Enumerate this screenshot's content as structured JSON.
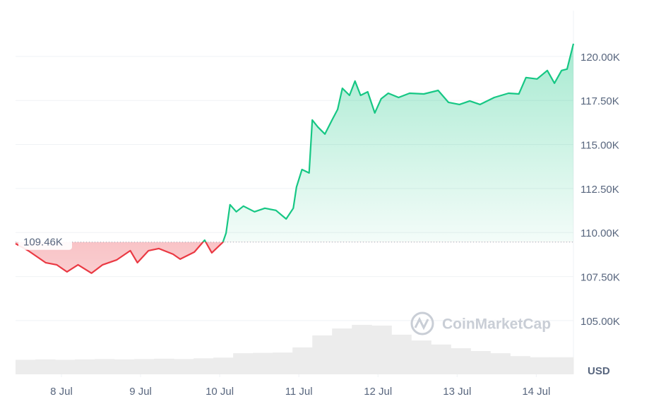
{
  "chart_data": {
    "type": "line",
    "x": [
      7.42,
      7.58,
      7.8,
      7.94,
      8.07,
      8.21,
      8.38,
      8.52,
      8.7,
      8.87,
      8.96,
      9.1,
      9.23,
      9.41,
      9.5,
      9.68,
      9.81,
      9.9,
      10.04,
      10.08,
      10.13,
      10.21,
      10.3,
      10.44,
      10.57,
      10.71,
      10.84,
      10.93,
      10.97,
      11.04,
      11.13,
      11.17,
      11.24,
      11.33,
      11.42,
      11.49,
      11.55,
      11.64,
      11.71,
      11.78,
      11.87,
      11.96,
      12.04,
      12.13,
      12.26,
      12.4,
      12.58,
      12.76,
      12.89,
      13.03,
      13.16,
      13.29,
      13.47,
      13.65,
      13.78,
      13.87,
      14.01,
      14.14,
      14.23,
      14.32,
      14.39,
      14.47
    ],
    "values": [
      109370,
      108970,
      108290,
      108170,
      107770,
      108170,
      107690,
      108170,
      108450,
      108970,
      108290,
      108970,
      109090,
      108770,
      108490,
      108890,
      109570,
      108850,
      109450,
      109970,
      111580,
      111180,
      111500,
      111180,
      111380,
      111260,
      110770,
      111380,
      112580,
      113580,
      113380,
      116390,
      115990,
      115590,
      116390,
      116990,
      118190,
      117790,
      118600,
      117790,
      117990,
      116790,
      117590,
      117910,
      117670,
      117910,
      117870,
      118070,
      117390,
      117270,
      117470,
      117270,
      117670,
      117910,
      117870,
      118800,
      118720,
      119200,
      118480,
      119200,
      119280,
      120720
    ],
    "up_color": "#16c784",
    "down_color": "#ea3943",
    "baseline": {
      "value": 109460,
      "label": "109.46K"
    },
    "xlim": [
      7.42,
      14.47
    ],
    "xticks": [
      {
        "value": 8,
        "label": "8 Jul"
      },
      {
        "value": 9,
        "label": "9 Jul"
      },
      {
        "value": 10,
        "label": "10 Jul"
      },
      {
        "value": 11,
        "label": "11 Jul"
      },
      {
        "value": 12,
        "label": "12 Jul"
      },
      {
        "value": 13,
        "label": "13 Jul"
      },
      {
        "value": 14,
        "label": "14 Jul"
      }
    ],
    "ylim": [
      101950,
      122600
    ],
    "yticks": [
      {
        "value": 105000,
        "label": "105.00K"
      },
      {
        "value": 107500,
        "label": "107.50K"
      },
      {
        "value": 110000,
        "label": "110.00K"
      },
      {
        "value": 112500,
        "label": "112.50K"
      },
      {
        "value": 115000,
        "label": "115.00K"
      },
      {
        "value": 117500,
        "label": "117.50K"
      },
      {
        "value": 120000,
        "label": "120.00K"
      }
    ],
    "y_unit": "USD",
    "grid": true,
    "watermark": "CoinMarketCap",
    "volume": {
      "color": "#ececec",
      "y2lim": [
        0,
        100
      ],
      "x": [
        7.42,
        7.67,
        7.92,
        8.17,
        8.42,
        8.67,
        8.92,
        9.17,
        9.42,
        9.67,
        9.92,
        10.17,
        10.42,
        10.67,
        10.92,
        11.17,
        11.42,
        11.67,
        11.92,
        12.17,
        12.42,
        12.67,
        12.92,
        13.17,
        13.42,
        13.67,
        13.92,
        14.17
      ],
      "values": [
        4.0,
        4.1,
        4.0,
        4.1,
        4.2,
        4.1,
        4.2,
        4.3,
        4.2,
        4.4,
        4.6,
        5.8,
        5.9,
        6.0,
        7.4,
        10.7,
        12.6,
        13.6,
        13.4,
        10.9,
        9.3,
        8.2,
        7.2,
        6.4,
        5.8,
        5.0,
        4.7,
        4.7
      ]
    }
  }
}
